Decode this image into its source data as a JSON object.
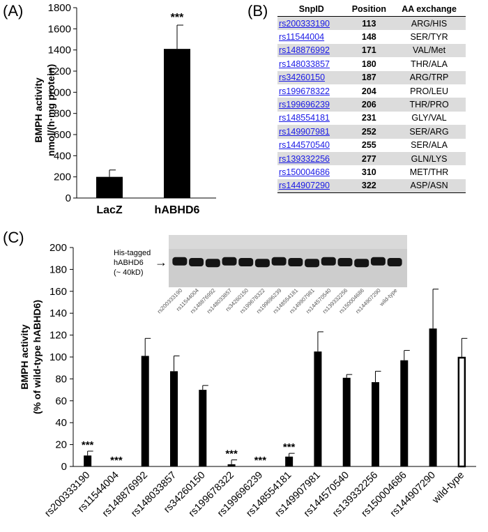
{
  "panels": {
    "a": "(A)",
    "b": "(B)",
    "c": "(C)"
  },
  "chart_data": [
    {
      "type": "bar",
      "categories": [
        "LacZ",
        "hABHD6"
      ],
      "values": [
        200,
        1410
      ],
      "errors": [
        65,
        225
      ],
      "annotations": [
        "",
        "***"
      ],
      "ylabel_lines": [
        "BMPH activity",
        "nmol/(h·mg protein)"
      ],
      "ylim": [
        0,
        1800
      ],
      "yticks": [
        0,
        200,
        400,
        600,
        800,
        1000,
        1200,
        1400,
        1600,
        1800
      ],
      "legend": "none"
    },
    {
      "type": "table",
      "columns": [
        "SnpID",
        "Position",
        "AA exchange"
      ],
      "rows": [
        [
          "rs200333190",
          "113",
          "ARG/HIS"
        ],
        [
          "rs11544004",
          "148",
          "SER/TYR"
        ],
        [
          "rs148876992",
          "171",
          "VAL/Met"
        ],
        [
          "rs148033857",
          "180",
          "THR/ALA"
        ],
        [
          "rs34260150",
          "187",
          "ARG/TRP"
        ],
        [
          "rs199678322",
          "204",
          "PRO/LEU"
        ],
        [
          "rs199696239",
          "206",
          "THR/PRO"
        ],
        [
          "rs148554181",
          "231",
          "GLY/VAL"
        ],
        [
          "rs149907981",
          "252",
          "SER/ARG"
        ],
        [
          "rs144570540",
          "255",
          "SER/ALA"
        ],
        [
          "rs139332256",
          "277",
          "GLN/LYS"
        ],
        [
          "rs150004686",
          "310",
          "MET/THR"
        ],
        [
          "rs144907290",
          "322",
          "ASP/ASN"
        ]
      ]
    },
    {
      "type": "bar",
      "categories": [
        "rs200333190",
        "rs11544004",
        "rs148876992",
        "rs148033857",
        "rs34260150",
        "rs199678322",
        "rs199696239",
        "rs148554181",
        "rs149907981",
        "rs144570540",
        "rs139332256",
        "rs150004686",
        "rs144907290",
        "wild-type"
      ],
      "values": [
        10,
        0,
        101,
        87,
        70,
        2,
        0,
        9,
        105,
        81,
        77,
        97,
        126,
        100
      ],
      "errors": [
        4,
        0,
        16,
        14,
        4,
        4,
        0,
        3,
        18,
        3,
        10,
        9,
        36,
        17
      ],
      "annotations": [
        "***",
        "***",
        "",
        "",
        "",
        "***",
        "***",
        "***",
        "",
        "",
        "",
        "",
        "",
        ""
      ],
      "open_bar": [
        false,
        false,
        false,
        false,
        false,
        false,
        false,
        false,
        false,
        false,
        false,
        false,
        false,
        true
      ],
      "ylabel_lines": [
        "BMPH activity",
        "(% of wild-type hABHD6)"
      ],
      "ylim": [
        0,
        200
      ],
      "yticks": [
        0,
        20,
        40,
        60,
        80,
        100,
        120,
        140,
        160,
        180,
        200
      ],
      "legend": "none"
    }
  ],
  "blot": {
    "label_lines": [
      "His-tagged",
      "hABHD6",
      "(~ 40kD)"
    ],
    "arrow": "→",
    "lanes": [
      "rs200333190",
      "rs11544004",
      "rs148876992",
      "rs148033857",
      "rs34260150",
      "rs199678322",
      "rs199696239",
      "rs148554181",
      "rs149907981",
      "rs144570540",
      "rs139332256",
      "rs150004686",
      "rs144907290",
      "wild-type"
    ]
  }
}
